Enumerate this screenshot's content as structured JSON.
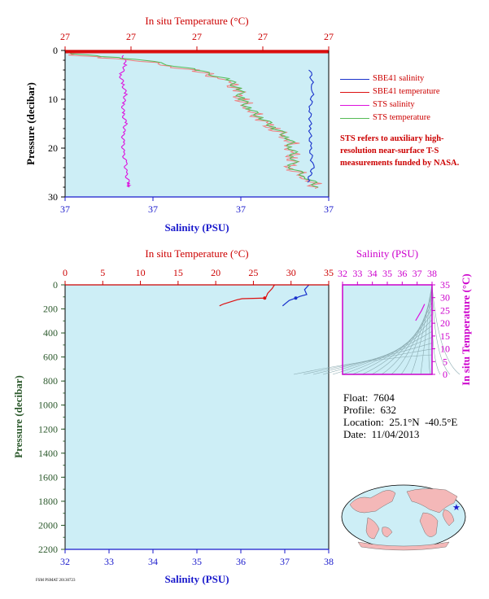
{
  "colors": {
    "temperature_axis": "#cc0000",
    "salinity_axis": "#1a1acc",
    "pressure_axis_top": "#000000",
    "pressure_axis_bottom": "#2d5a2d",
    "ts_axis": "#cc00cc",
    "plot_bg": "#cdeef6",
    "sbe41_salinity": "#1a33cc",
    "sbe41_temperature": "#dd1111",
    "sts_salinity": "#dd11dd",
    "sts_temperature": "#55bb55",
    "sts_temperature_alt": "#f08080"
  },
  "top_chart": {
    "title_top": "In situ Temperature (°C)",
    "top_ticks": [
      "27",
      "27",
      "27",
      "27",
      "27"
    ],
    "bottom_ticks": [
      "37",
      "37",
      "37",
      "37"
    ],
    "xlabel": "Salinity (PSU)",
    "ylabel": "Pressure (decibar)",
    "y_ticks": [
      "0",
      "10",
      "20",
      "30"
    ]
  },
  "legend": {
    "items": [
      {
        "label": "SBE41 salinity"
      },
      {
        "label": "SBE41 temperature"
      },
      {
        "label": "STS salinity"
      },
      {
        "label": "STS temperature"
      }
    ]
  },
  "note": "STS refers to auxiliary high-resolution near-surface T-S measurements funded by NASA.",
  "bottom_chart": {
    "title_top": "In situ Temperature (°C)",
    "top_ticks": [
      "0",
      "5",
      "10",
      "15",
      "20",
      "25",
      "30",
      "35"
    ],
    "bottom_ticks": [
      "32",
      "33",
      "34",
      "35",
      "36",
      "37",
      "38"
    ],
    "xlabel": "Salinity (PSU)",
    "ylabel": "Pressure (decibar)",
    "y_ticks": [
      "0",
      "200",
      "400",
      "600",
      "800",
      "1000",
      "1200",
      "1400",
      "1600",
      "1800",
      "2000",
      "2200"
    ]
  },
  "ts_chart": {
    "title_top": "Salinity (PSU)",
    "top_ticks": [
      "32",
      "33",
      "34",
      "35",
      "36",
      "37",
      "38"
    ],
    "right_label": "In situ Temperature (°C)",
    "right_ticks": [
      "0",
      "5",
      "10",
      "15",
      "20",
      "25",
      "30",
      "35"
    ]
  },
  "info": {
    "float": "Float:  7604",
    "profile": "Profile:  632",
    "location": "Location:  25.1°N  -40.5°E",
    "date": "Date:  11/04/2013"
  },
  "credit": "FSM PSMAT 20130723",
  "chart_data": [
    {
      "type": "line",
      "title": "In situ Temperature (°C)",
      "xlabel": "Salinity (PSU)",
      "ylabel": "Pressure (decibar)",
      "ylim": [
        30,
        0
      ],
      "series": [
        {
          "name": "STS salinity",
          "pressure": [
            1,
            3,
            5,
            7,
            9,
            11,
            13,
            15,
            17,
            19,
            21,
            23,
            25,
            27,
            28
          ],
          "x_frac": [
            0.22,
            0.23,
            0.21,
            0.22,
            0.23,
            0.22,
            0.22,
            0.23,
            0.22,
            0.22,
            0.22,
            0.23,
            0.23,
            0.24,
            0.24
          ]
        },
        {
          "name": "STS temperature",
          "pressure": [
            0.5,
            2,
            4,
            6,
            8,
            10,
            12,
            14,
            16,
            18,
            20,
            22,
            24,
            26,
            28
          ],
          "x_frac": [
            0.0,
            0.3,
            0.5,
            0.62,
            0.66,
            0.67,
            0.7,
            0.75,
            0.8,
            0.85,
            0.86,
            0.87,
            0.86,
            0.92,
            0.96
          ]
        },
        {
          "name": "SBE41 salinity",
          "pressure": [
            4,
            8,
            12,
            16,
            20,
            24,
            27
          ],
          "x_frac": [
            0.93,
            0.94,
            0.93,
            0.93,
            0.93,
            0.94,
            0.92
          ]
        },
        {
          "name": "SBE41 temperature",
          "pressure": [
            0,
            0.2
          ],
          "x_frac": [
            0.0,
            1.0
          ]
        }
      ]
    },
    {
      "type": "line",
      "title": "In situ Temperature (°C)",
      "xlabel": "Salinity (PSU)",
      "ylabel": "Pressure (decibar)",
      "xlim": [
        32,
        38
      ],
      "ylim": [
        2200,
        0
      ],
      "series": [
        {
          "name": "SBE41 temperature",
          "x_unit": "°C",
          "x": [
            27.8,
            27.5,
            26.9,
            26.7,
            26.5,
            23.5,
            22.8,
            21.0,
            20.5
          ],
          "pressure": [
            0,
            30,
            70,
            100,
            110,
            115,
            125,
            160,
            175
          ]
        },
        {
          "name": "SBE41 salinity",
          "x_unit": "PSU",
          "x": [
            37.55,
            37.45,
            37.5,
            37.35,
            37.25,
            37.1,
            37.0,
            36.95
          ],
          "pressure": [
            0,
            40,
            80,
            95,
            110,
            130,
            160,
            175
          ]
        }
      ]
    },
    {
      "type": "scatter",
      "title": "Salinity (PSU)",
      "xlabel": "Salinity (PSU)",
      "ylabel": "In situ Temperature (°C)",
      "xlim": [
        32,
        38
      ],
      "ylim": [
        0,
        35
      ],
      "series": [
        {
          "name": "T-S",
          "x": [
            36.9,
            37.1,
            37.3,
            37.5
          ],
          "y": [
            21,
            23,
            25,
            27.5
          ]
        }
      ]
    }
  ]
}
